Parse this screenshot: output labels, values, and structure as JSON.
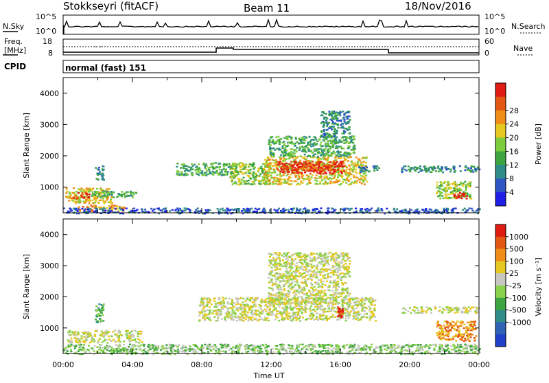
{
  "header": {
    "station": "Stokkseyri (fitACF)",
    "beam": "Beam 11",
    "date": "18/Nov/2016"
  },
  "strip_panels": {
    "nsky": {
      "label": "N.Sky",
      "ticks": [
        "10^5",
        "10^0"
      ]
    },
    "nsearch": {
      "label": "N.Search",
      "ticks": [
        "10^5",
        "10^0"
      ]
    },
    "freq": {
      "label_line1": "Freq.",
      "label_line2": "[MHz]",
      "ticks": [
        "18",
        "8"
      ]
    },
    "nave": {
      "label": "Nave",
      "ticks": [
        "60",
        "0"
      ]
    },
    "cpid": {
      "label": "CPID",
      "value": "normal (fast) 151"
    }
  },
  "chart_data": [
    {
      "type": "heatmap",
      "name": "power",
      "xlabel": "",
      "ylabel": "Slant Range [km]",
      "xlim": [
        0,
        24
      ],
      "ylim": [
        180,
        4500
      ],
      "yticks": [
        1000,
        2000,
        3000,
        4000
      ],
      "colorbar": {
        "label": "Power [dB]",
        "ticks": [
          "4",
          "8",
          "12",
          "16",
          "20",
          "24",
          "28"
        ],
        "colors": [
          "#1f1fe8",
          "#2e55c4",
          "#2f8c86",
          "#3da53f",
          "#7dcc3c",
          "#e4c81f",
          "#f08c18",
          "#e25712",
          "#e01c12"
        ]
      },
      "regions": [
        {
          "t": [
            0.1,
            2.8
          ],
          "r": [
            500,
            1000
          ],
          "level": 5
        },
        {
          "t": [
            0.5,
            1.5
          ],
          "r": [
            650,
            850
          ],
          "level": 8
        },
        {
          "t": [
            1.6,
            4.2
          ],
          "r": [
            700,
            900
          ],
          "level": 3
        },
        {
          "t": [
            0.8,
            3.5
          ],
          "r": [
            250,
            450
          ],
          "level": 6
        },
        {
          "t": [
            1.8,
            2.3
          ],
          "r": [
            1200,
            1700
          ],
          "level": 2
        },
        {
          "t": [
            6.5,
            9.8
          ],
          "r": [
            1400,
            1800
          ],
          "level": 3
        },
        {
          "t": [
            9.6,
            11.8
          ],
          "r": [
            1100,
            1800
          ],
          "level": 4
        },
        {
          "t": [
            11.5,
            17.5
          ],
          "r": [
            1100,
            2000
          ],
          "level": 5
        },
        {
          "t": [
            12.3,
            16.2
          ],
          "r": [
            1450,
            1850
          ],
          "level": 8
        },
        {
          "t": [
            13.5,
            15.5
          ],
          "r": [
            1550,
            1750
          ],
          "level": 7
        },
        {
          "t": [
            11.8,
            16.8
          ],
          "r": [
            2000,
            2650
          ],
          "level": 3
        },
        {
          "t": [
            14.8,
            16.5
          ],
          "r": [
            2600,
            3450
          ],
          "level": 2
        },
        {
          "t": [
            17.0,
            18.2
          ],
          "r": [
            1500,
            1700
          ],
          "level": 2
        },
        {
          "t": [
            19.5,
            24.0
          ],
          "r": [
            1500,
            1700
          ],
          "level": 2
        },
        {
          "t": [
            21.5,
            23.5
          ],
          "r": [
            650,
            1200
          ],
          "level": 4
        },
        {
          "t": [
            22.5,
            23.3
          ],
          "r": [
            650,
            850
          ],
          "level": 8
        },
        {
          "t": [
            0.0,
            24.0
          ],
          "r": [
            180,
            350
          ],
          "level": 1
        }
      ]
    },
    {
      "type": "heatmap",
      "name": "velocity",
      "xlabel": "Time UT",
      "ylabel": "Slant Range [km]",
      "xlim": [
        0,
        24
      ],
      "ylim": [
        180,
        4500
      ],
      "yticks": [
        1000,
        2000,
        3000,
        4000
      ],
      "xticks": [
        "00:00",
        "04:00",
        "08:00",
        "12:00",
        "16:00",
        "20:00",
        "00:00"
      ],
      "colorbar": {
        "label": "Velocity [m s⁻¹]",
        "ticks": [
          "1000",
          "500",
          "100",
          "25",
          "-25",
          "-100",
          "-500",
          "-1000"
        ],
        "colors": [
          "#2040c8",
          "#2f62b4",
          "#2f8c86",
          "#3da53f",
          "#8ad24a",
          "#c8c8c0",
          "#e4c81f",
          "#f08c18",
          "#e25712",
          "#e01c12"
        ]
      },
      "regions": [
        {
          "t": [
            0.2,
            4.5
          ],
          "r": [
            550,
            950
          ],
          "level": 5
        },
        {
          "t": [
            0.0,
            24.0
          ],
          "r": [
            180,
            500
          ],
          "level": 4
        },
        {
          "t": [
            1.8,
            2.3
          ],
          "r": [
            1200,
            1800
          ],
          "level": 3
        },
        {
          "t": [
            7.8,
            18.0
          ],
          "r": [
            1250,
            2000
          ],
          "level": 5
        },
        {
          "t": [
            11.8,
            16.5
          ],
          "r": [
            1800,
            3450
          ],
          "level": 5
        },
        {
          "t": [
            19.5,
            24.0
          ],
          "r": [
            1500,
            1700
          ],
          "level": 5
        },
        {
          "t": [
            21.5,
            23.8
          ],
          "r": [
            600,
            1250
          ],
          "level": 7
        },
        {
          "t": [
            15.8,
            16.1
          ],
          "r": [
            1350,
            1700
          ],
          "level": 9
        }
      ]
    }
  ]
}
